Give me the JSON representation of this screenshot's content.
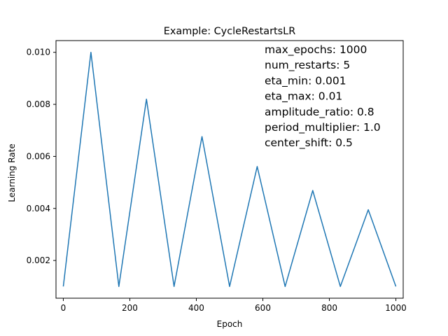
{
  "chart_data": {
    "type": "line",
    "title": "Example: CycleRestartsLR",
    "xlabel": "Epoch",
    "ylabel": "Learning Rate",
    "xlim": [
      -22,
      1022
    ],
    "ylim": [
      0.00055,
      0.01045
    ],
    "x_ticks": [
      0,
      200,
      400,
      600,
      800,
      1000
    ],
    "x_tick_labels": [
      "0",
      "200",
      "400",
      "600",
      "800",
      "1000"
    ],
    "y_ticks": [
      0.002,
      0.004,
      0.006,
      0.008,
      0.01
    ],
    "y_tick_labels": [
      "0.002",
      "0.004",
      "0.006",
      "0.008",
      "0.010"
    ],
    "grid": false,
    "line_color": "#1f77b4",
    "series": [
      {
        "x": [
          0,
          83,
          167,
          250,
          333,
          417,
          500,
          583,
          667,
          750,
          833,
          917,
          1000
        ],
        "y": [
          0.001,
          0.01,
          0.001,
          0.0082,
          0.001,
          0.00676,
          0.001,
          0.00561,
          0.001,
          0.00469,
          0.001,
          0.00395,
          0.001
        ]
      }
    ],
    "annotations": [
      "max_epochs: 1000",
      "num_restarts: 5",
      "eta_min: 0.001",
      "eta_max: 0.01",
      "amplitude_ratio: 0.8",
      "period_multiplier: 1.0",
      "center_shift: 0.5"
    ]
  }
}
